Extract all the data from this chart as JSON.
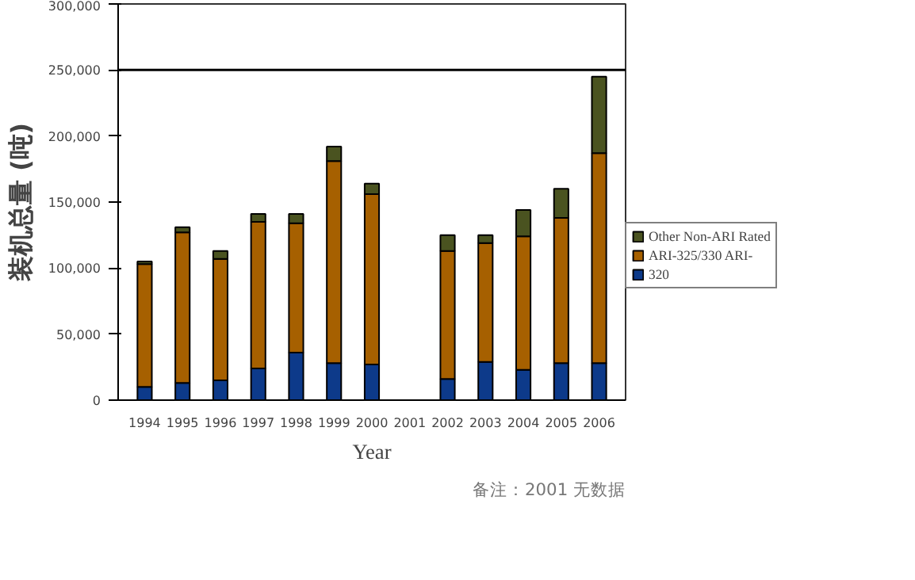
{
  "chart_data": {
    "type": "bar",
    "stacked": true,
    "xlabel": "Year",
    "ylabel": "装机总量 (吨)",
    "categories": [
      "1994",
      "1995",
      "1996",
      "1997",
      "1998",
      "1999",
      "2000",
      "2001",
      "2002",
      "2003",
      "2004",
      "2005",
      "2006"
    ],
    "series": [
      {
        "name": "320",
        "color": "#0d3a8a",
        "values": [
          10000,
          13000,
          15000,
          24000,
          36000,
          28000,
          27000,
          null,
          16000,
          29000,
          23000,
          28000,
          28000
        ]
      },
      {
        "name": "ARI-325/330 ARI-",
        "color": "#a66000",
        "values": [
          93000,
          114000,
          92000,
          111000,
          98000,
          153000,
          129000,
          null,
          97000,
          90000,
          101000,
          110000,
          159000
        ]
      },
      {
        "name": "Other Non-ARI Rated",
        "color": "#4a5320",
        "values": [
          2000,
          4000,
          6000,
          6000,
          7000,
          11000,
          8000,
          null,
          12000,
          6000,
          20000,
          22000,
          58000
        ]
      }
    ],
    "ylim": [
      0,
      300000
    ],
    "yticks": [
      0,
      {
        "value": 50000,
        "label": "50,000"
      },
      {
        "value": 100000,
        "label": "100,000"
      },
      {
        "value": 150000,
        "label": "150,000"
      },
      {
        "value": 200000,
        "label": "200,000"
      },
      {
        "value": 250000,
        "label": "250,000"
      },
      {
        "value": 300000,
        "label": "300,000"
      }
    ],
    "ref_lines": [
      {
        "axis": "y",
        "value": 250000,
        "color": "#000000"
      }
    ],
    "grid": false,
    "legend": "right",
    "annotations": [
      "备注：2001 无数据"
    ]
  }
}
